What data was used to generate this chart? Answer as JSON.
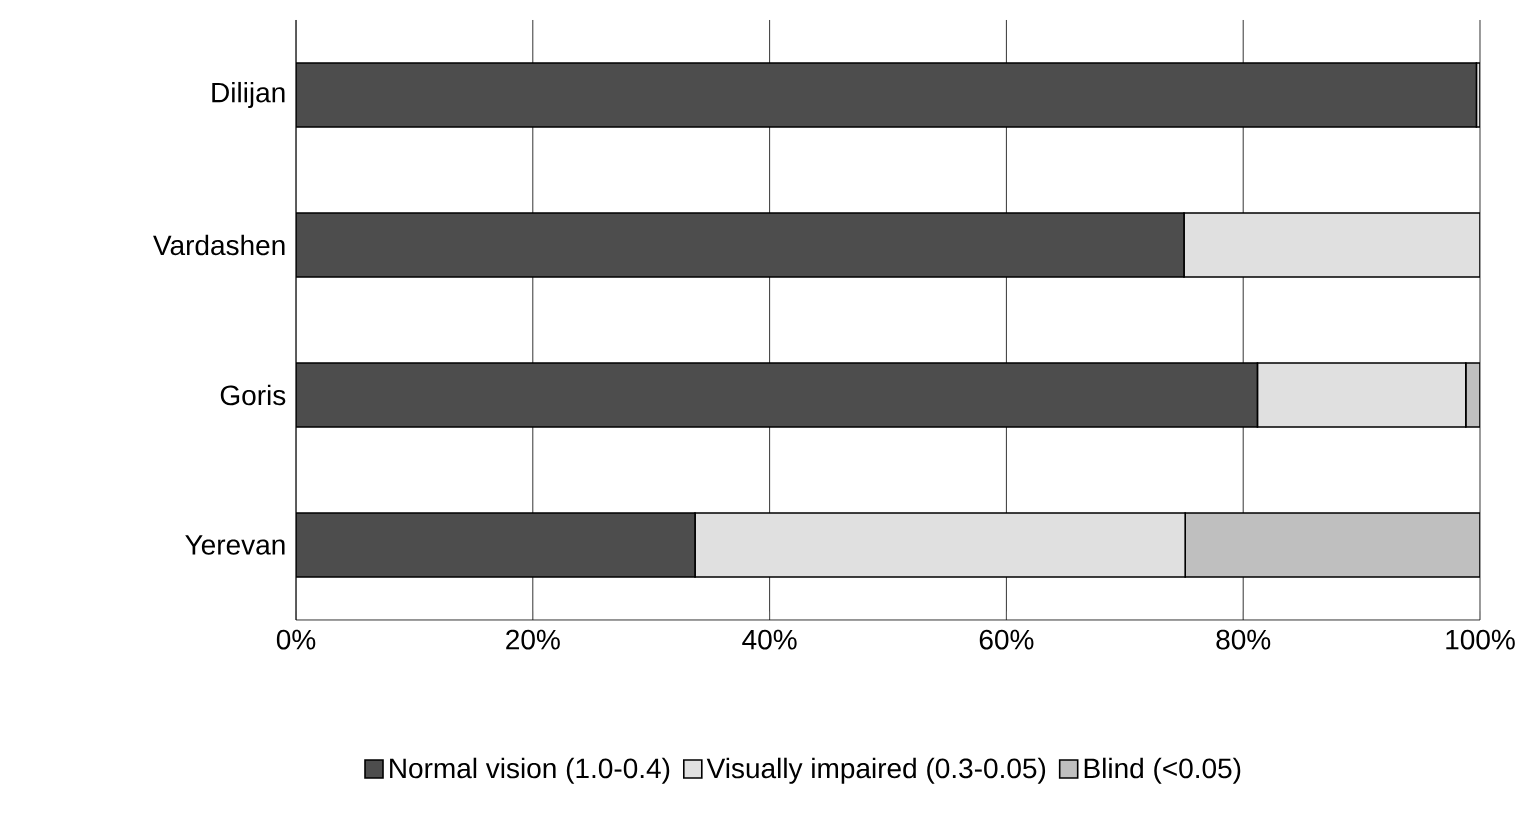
{
  "chart_data": {
    "type": "bar",
    "orientation": "horizontal",
    "stacked": true,
    "categories": [
      "Dilijan",
      "Vardashen",
      "Goris",
      "Yerevan"
    ],
    "series": [
      {
        "name": "Normal vision (1.0-0.4)",
        "color": "#4d4d4d",
        "values": [
          99.7,
          75.0,
          81.2,
          33.7
        ]
      },
      {
        "name": "Visually impaired (0.3-0.05)",
        "color": "#e0e0e0",
        "values": [
          0.3,
          25.0,
          17.6,
          41.4
        ]
      },
      {
        "name": "Blind (<0.05)",
        "color": "#bfbfbf",
        "values": [
          0,
          0,
          1.2,
          24.9
        ]
      }
    ],
    "xlim": [
      0,
      100
    ],
    "xticks": [
      {
        "value": 0,
        "label": "0%"
      },
      {
        "value": 20,
        "label": "20%"
      },
      {
        "value": 40,
        "label": "40%"
      },
      {
        "value": 60,
        "label": "60%"
      },
      {
        "value": 80,
        "label": "80%"
      },
      {
        "value": 100,
        "label": "100%"
      }
    ],
    "grid": "x",
    "legend": "bottom"
  }
}
